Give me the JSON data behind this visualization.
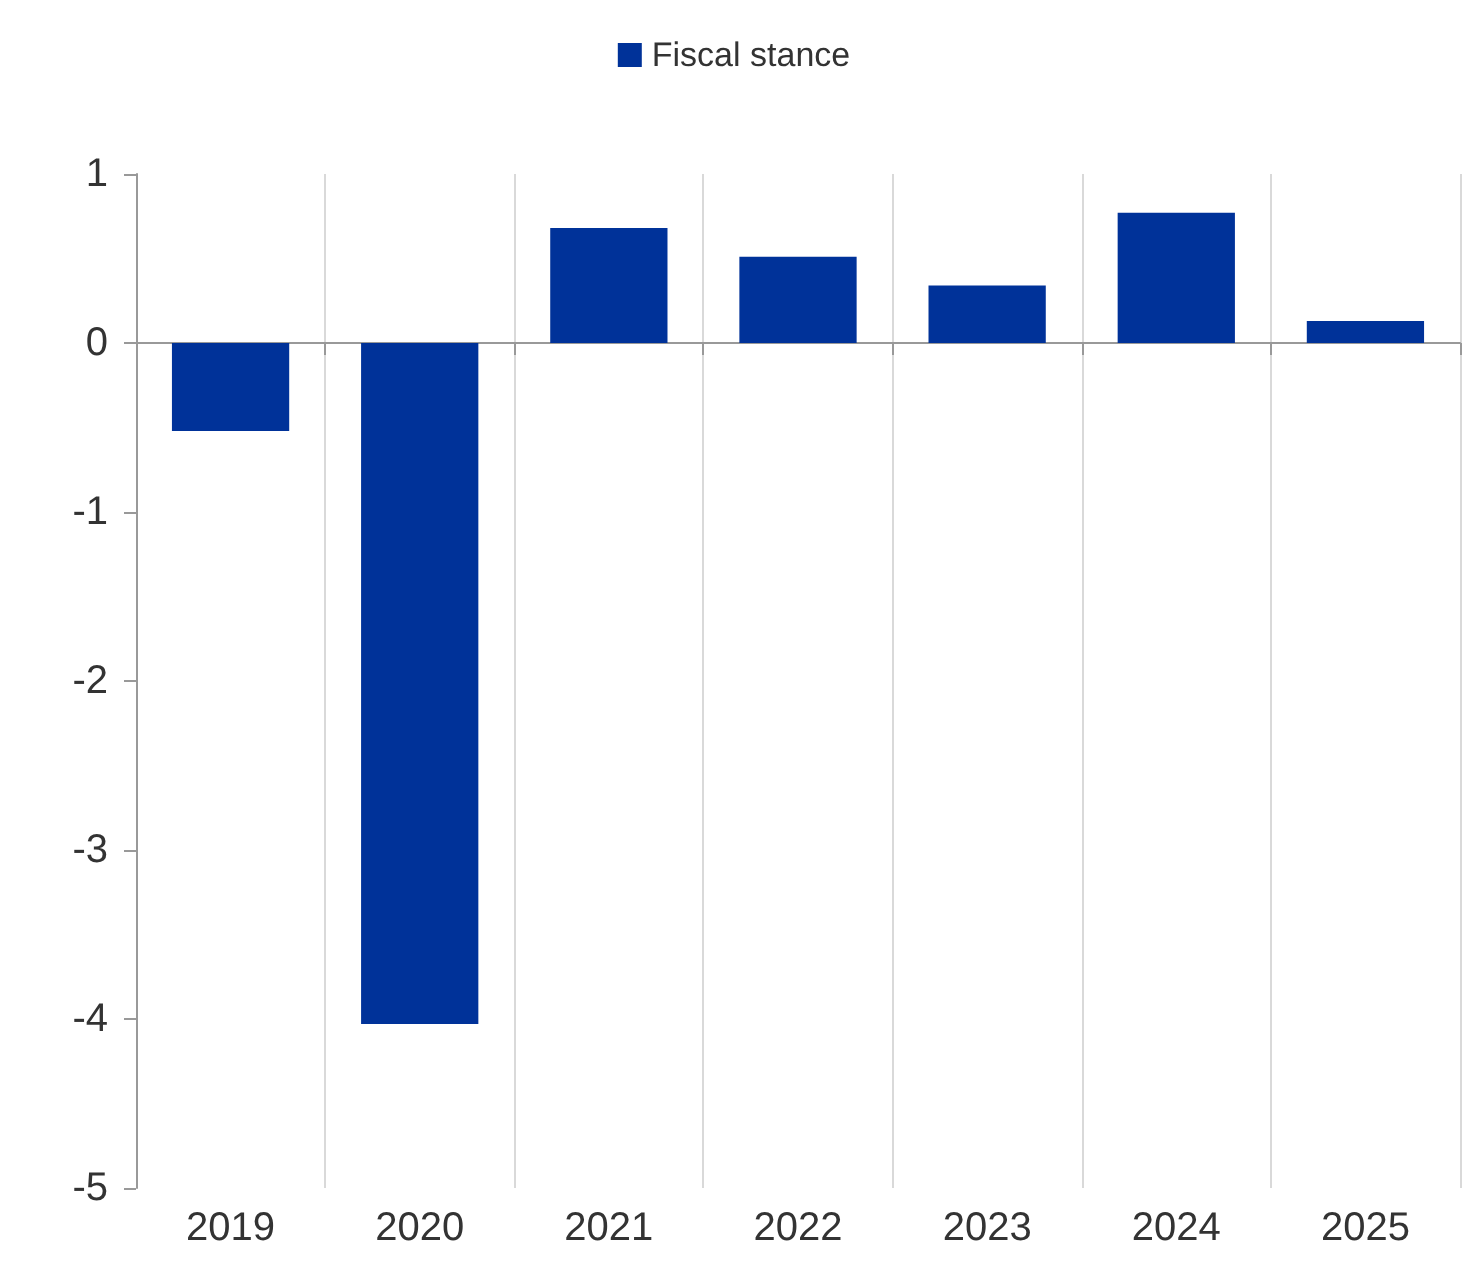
{
  "chart_data": {
    "type": "bar",
    "categories": [
      "2019",
      "2020",
      "2021",
      "2022",
      "2023",
      "2024",
      "2025"
    ],
    "series": [
      {
        "name": "Fiscal stance",
        "color": "#003299",
        "values": [
          -0.52,
          -4.03,
          0.68,
          0.51,
          0.34,
          0.77,
          0.13
        ]
      }
    ],
    "ylim": [
      -5,
      1
    ],
    "yticks": [
      -5,
      -4,
      -3,
      -2,
      -1,
      0,
      1
    ],
    "grid": "x",
    "legend": "top"
  }
}
